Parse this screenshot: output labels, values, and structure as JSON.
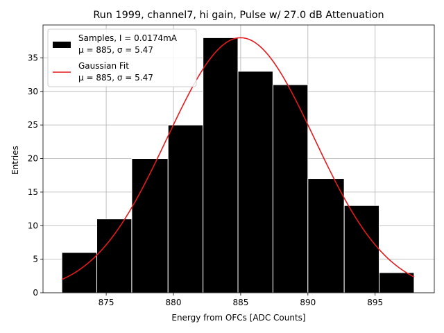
{
  "chart_data": {
    "type": "bar",
    "title": "Run 1999, channel7, hi gain, Pulse w/ 27.0 dB Attenuation",
    "xlabel": "Energy from OFCs [ADC Counts]",
    "ylabel": "Entries",
    "xlim": [
      870.3,
      899.4
    ],
    "ylim": [
      0,
      39.9
    ],
    "xticks": [
      875,
      880,
      885,
      890,
      895
    ],
    "yticks": [
      0,
      5,
      10,
      15,
      20,
      25,
      30,
      35
    ],
    "grid": true,
    "legend_position": "top-left",
    "bins": [
      {
        "start": 871.7,
        "end": 874.3,
        "count": 6
      },
      {
        "start": 874.3,
        "end": 876.9,
        "count": 11
      },
      {
        "start": 876.9,
        "end": 879.6,
        "count": 20
      },
      {
        "start": 879.6,
        "end": 882.2,
        "count": 25
      },
      {
        "start": 882.2,
        "end": 884.8,
        "count": 38
      },
      {
        "start": 884.8,
        "end": 887.4,
        "count": 33
      },
      {
        "start": 887.4,
        "end": 890.0,
        "count": 31
      },
      {
        "start": 890.0,
        "end": 892.7,
        "count": 17
      },
      {
        "start": 892.7,
        "end": 895.3,
        "count": 13
      },
      {
        "start": 895.3,
        "end": 897.9,
        "count": 3
      }
    ],
    "fit": {
      "amplitude": 38,
      "mu": 885,
      "sigma": 5.47,
      "x_range": [
        871.7,
        897.9
      ]
    },
    "series": [
      {
        "name_line1": "Samples, I = 0.0174mA",
        "name_line2": "μ = 885, σ = 5.47",
        "color": "#000000",
        "kind": "histogram"
      },
      {
        "name_line1": "Gaussian Fit",
        "name_line2": "μ = 885, σ = 5.47",
        "color": "#e41a1c",
        "kind": "line"
      }
    ]
  }
}
